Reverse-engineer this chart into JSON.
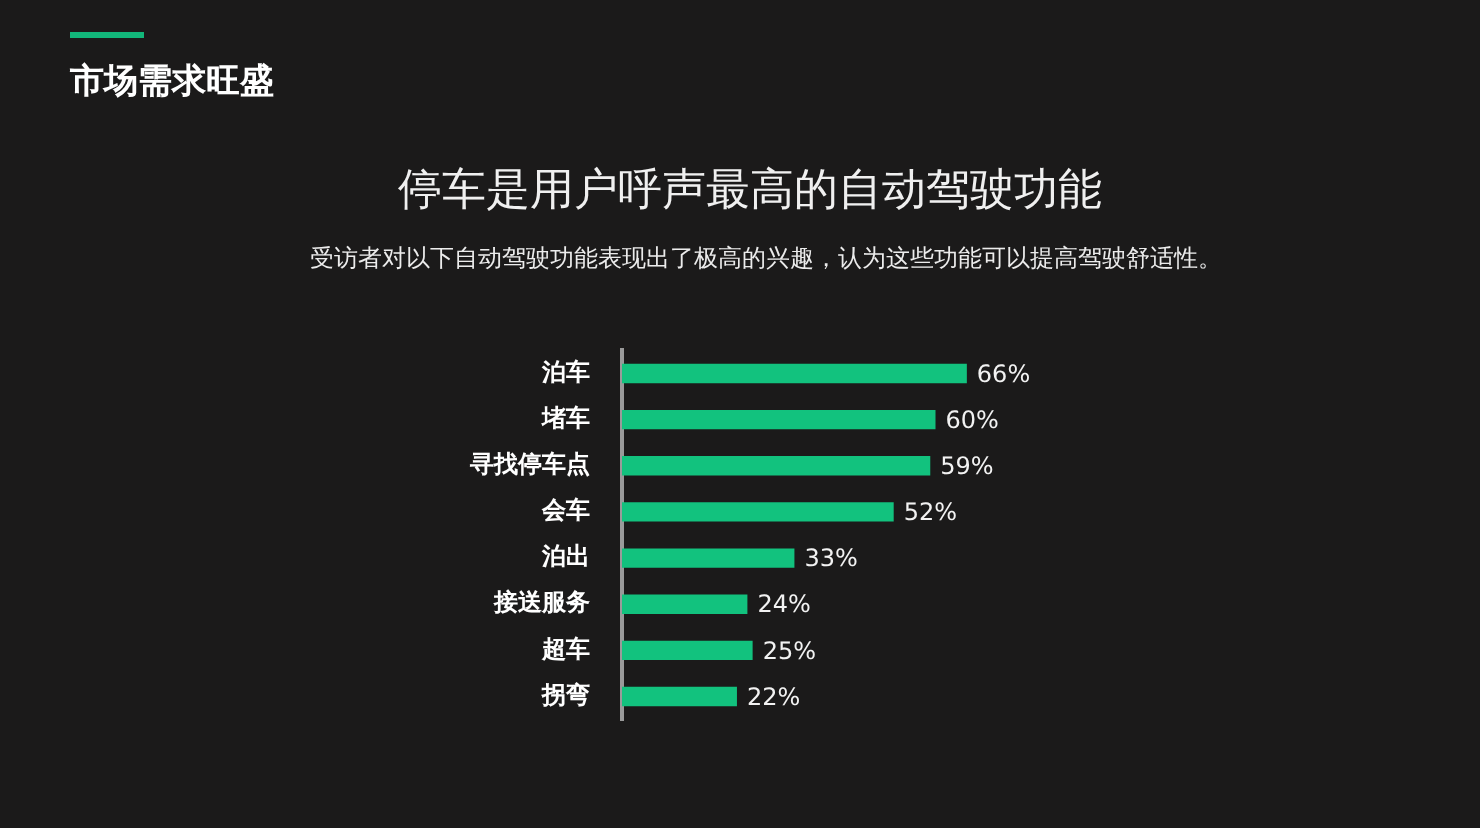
{
  "chart_data": {
    "type": "bar",
    "orientation": "horizontal",
    "title": "停车是用户呼声最高的自动驾驶功能",
    "subtitle": "受访者对以下自动驾驶功能表现出了极高的兴趣，认为这些功能可以提高驾驶舒适性。",
    "annotations": [
      "市场需求旺盛"
    ],
    "categories": [
      "泊车",
      "堵车",
      "寻找停车点",
      "会车",
      "泊出",
      "接送服务",
      "超车",
      "拐弯"
    ],
    "values": [
      66,
      60,
      59,
      52,
      33,
      24,
      25,
      22
    ],
    "value_labels": [
      "66%",
      "60%",
      "59%",
      "52%",
      "33%",
      "24%",
      "25%",
      "22%"
    ],
    "color": "#12c27e",
    "tick_labels": "y",
    "legend": false
  }
}
